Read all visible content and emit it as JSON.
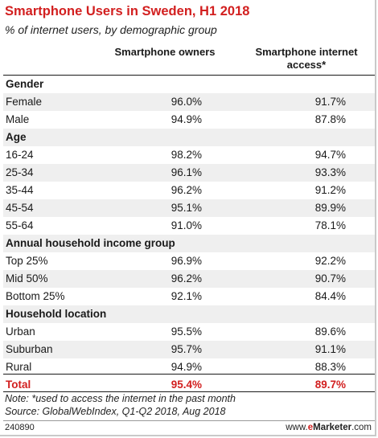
{
  "title": "Smartphone Users in Sweden, H1 2018",
  "subtitle": "% of internet users, by demographic group",
  "chart_data": {
    "type": "table",
    "columns": [
      "Smartphone owners",
      "Smartphone internet access*"
    ],
    "sections": [
      {
        "name": "Gender",
        "rows": [
          {
            "label": "Female",
            "values": [
              "96.0%",
              "91.7%"
            ]
          },
          {
            "label": "Male",
            "values": [
              "94.9%",
              "87.8%"
            ]
          }
        ]
      },
      {
        "name": "Age",
        "rows": [
          {
            "label": "16-24",
            "values": [
              "98.2%",
              "94.7%"
            ]
          },
          {
            "label": "25-34",
            "values": [
              "96.1%",
              "93.3%"
            ]
          },
          {
            "label": "35-44",
            "values": [
              "96.2%",
              "91.2%"
            ]
          },
          {
            "label": "45-54",
            "values": [
              "95.1%",
              "89.9%"
            ]
          },
          {
            "label": "55-64",
            "values": [
              "91.0%",
              "78.1%"
            ]
          }
        ]
      },
      {
        "name": "Annual household income group",
        "rows": [
          {
            "label": "Top 25%",
            "values": [
              "96.9%",
              "92.2%"
            ]
          },
          {
            "label": "Mid 50%",
            "values": [
              "96.2%",
              "90.7%"
            ]
          },
          {
            "label": "Bottom 25%",
            "values": [
              "92.1%",
              "84.4%"
            ]
          }
        ]
      },
      {
        "name": "Household location",
        "rows": [
          {
            "label": "Urban",
            "values": [
              "95.5%",
              "89.6%"
            ]
          },
          {
            "label": "Suburban",
            "values": [
              "95.7%",
              "91.1%"
            ]
          },
          {
            "label": "Rural",
            "values": [
              "94.9%",
              "88.3%"
            ]
          }
        ]
      }
    ],
    "total": {
      "label": "Total",
      "values": [
        "95.4%",
        "89.7%"
      ]
    }
  },
  "footer": {
    "note": "Note: *used to access the internet in the past month",
    "source": "Source: GlobalWebIndex, Q1-Q2 2018, Aug 2018",
    "chart_id": "240890",
    "brand_prefix": "www.",
    "brand_e": "e",
    "brand_name": "Marketer",
    "brand_suffix": ".com"
  },
  "colors": {
    "accent": "#d21f1f",
    "row_shade": "#efefef"
  }
}
